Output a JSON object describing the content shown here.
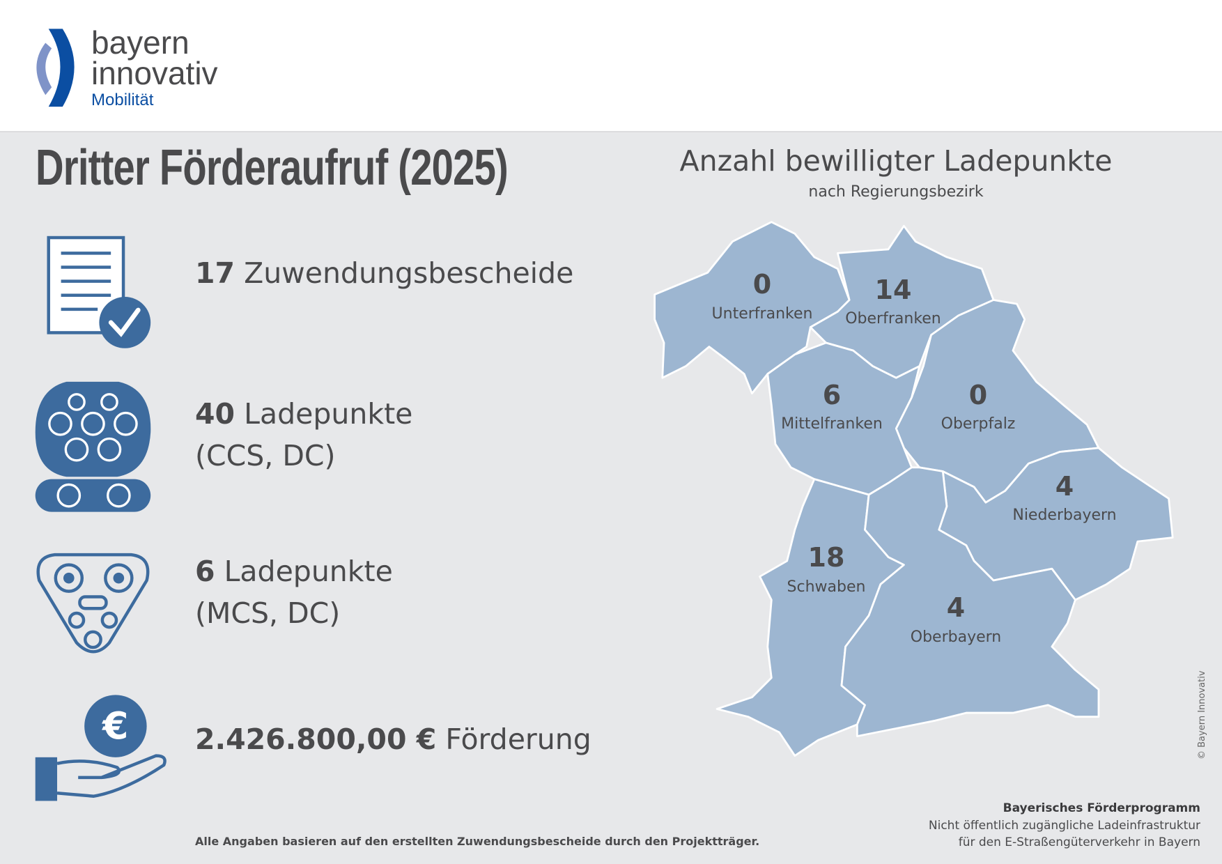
{
  "logo": {
    "line1": "bayern",
    "line2": "innovativ",
    "line3": "Mobilität",
    "colors": {
      "dark": "#0b4ea2",
      "light": "#7f93c8"
    }
  },
  "title": "Dritter Förderaufruf (2025)",
  "stats": [
    {
      "icon": "document-check-icon",
      "value": "17",
      "label": "Zuwendungsbescheide"
    },
    {
      "icon": "ccs-plug-icon",
      "value": "40",
      "label": "Ladepunkte",
      "sub": "(CCS, DC)"
    },
    {
      "icon": "mcs-plug-icon",
      "value": "6",
      "label": "Ladepunkte",
      "sub": "(MCS, DC)"
    },
    {
      "icon": "hand-euro-icon",
      "value": "2.426.800,00 €",
      "label": "Förderung"
    }
  ],
  "footnote": "Alle Angaben basieren auf den erstellten Zuwendungsbescheide durch den Projektträger.",
  "map": {
    "title": "Anzahl bewilligter Ladepunkte",
    "subtitle": "nach Regierungsbezirk",
    "fill": "#9db6d1",
    "regions": [
      {
        "name": "Unterfranken",
        "value": "0"
      },
      {
        "name": "Oberfranken",
        "value": "14"
      },
      {
        "name": "Mittelfranken",
        "value": "6"
      },
      {
        "name": "Oberpfalz",
        "value": "0"
      },
      {
        "name": "Niederbayern",
        "value": "4"
      },
      {
        "name": "Schwaben",
        "value": "18"
      },
      {
        "name": "Oberbayern",
        "value": "4"
      }
    ]
  },
  "program": {
    "title": "Bayerisches Förderprogramm",
    "line1": "Nicht öffentlich zugängliche Ladeinfrastruktur",
    "line2": "für den E-Straßengüterverkehr in Bayern"
  },
  "copyright": "© Bayern Innovativ",
  "icon_color": "#3d6b9e"
}
